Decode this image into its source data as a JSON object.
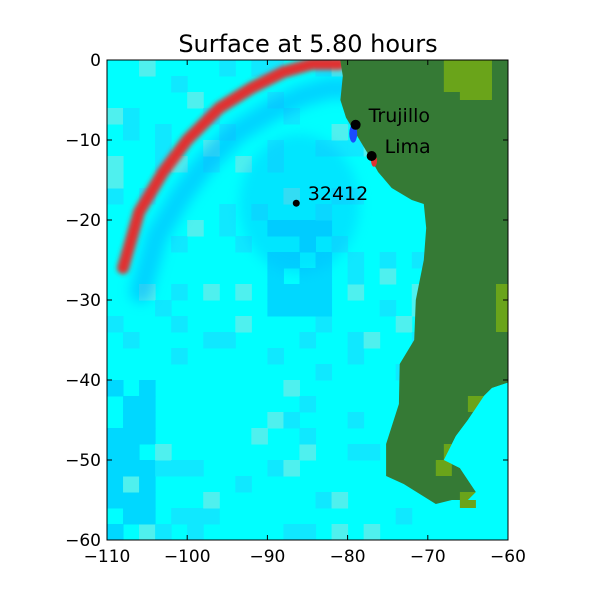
{
  "chart_data": {
    "type": "heatmap",
    "title": "Surface at 5.80 hours",
    "xlabel": "",
    "ylabel": "",
    "xlim": [
      -110,
      -60
    ],
    "ylim": [
      -60,
      0
    ],
    "xticks": [
      -110,
      -100,
      -90,
      -80,
      -70,
      -60
    ],
    "yticks": [
      0,
      -10,
      -20,
      -30,
      -40,
      -50,
      -60
    ],
    "xtick_labels": [
      "−110",
      "−100",
      "−90",
      "−80",
      "−70",
      "−60"
    ],
    "ytick_labels": [
      "0",
      "−10",
      "−20",
      "−30",
      "−40",
      "−50",
      "−60"
    ],
    "grid": false,
    "colors": {
      "ocean": "#00ffff",
      "ocean_deep": "#00c8ff",
      "land": "#357a35",
      "land_high": "#6aa41a",
      "crest": "#e03030",
      "trough": "#1a4cff"
    },
    "points": [
      {
        "label": "Trujillo",
        "x": -79.0,
        "y": -8.1
      },
      {
        "label": "Lima",
        "x": -77.0,
        "y": -12.0
      },
      {
        "label": "32412",
        "x": -86.4,
        "y": -17.9
      }
    ],
    "wavefront": {
      "description_series": "leading crest arc",
      "x": [
        -108.0,
        -106.0,
        -103.0,
        -100.0,
        -96.0,
        -92.0,
        -88.0,
        -84.5,
        -81.0
      ],
      "y": [
        -26.0,
        -19.0,
        -14.0,
        -10.0,
        -6.0,
        -3.5,
        -1.5,
        -0.5,
        -0.5
      ]
    }
  }
}
